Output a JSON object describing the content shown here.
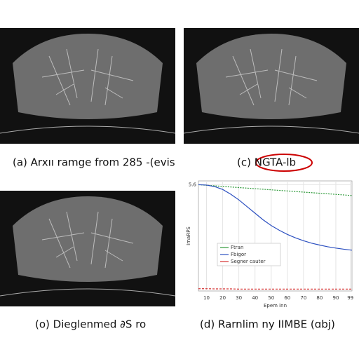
{
  "captions": {
    "a": "(a) Arxıı ramge from 285 -(evis",
    "c": "(c) NGTA-lb",
    "o": "(o) Dieglenmed ∂S ro",
    "d": "(d) Rarnlim ny IIMBE (ɑbj)"
  },
  "chart_data": {
    "type": "line",
    "x_label": "Epem inn",
    "y_label": "ImaRPS",
    "x": [
      5,
      10,
      15,
      20,
      25,
      30,
      35,
      40,
      45,
      50,
      55,
      60,
      65,
      70,
      75,
      80,
      85,
      90,
      95,
      100
    ],
    "xlim": [
      5,
      100
    ],
    "xticks": [
      10,
      20,
      30,
      40,
      50,
      60,
      70,
      80,
      90,
      {
        "value": 99,
        "label": "99"
      }
    ],
    "ylim": [
      0,
      5.8
    ],
    "yticks": [
      {
        "value": 5.6,
        "label": "5.6"
      }
    ],
    "grid": true,
    "series": [
      {
        "name": "Ftran",
        "color": "#2e9a3a",
        "values": [
          5.6,
          5.57,
          5.54,
          5.51,
          5.48,
          5.45,
          5.42,
          5.39,
          5.36,
          5.33,
          5.3,
          5.27,
          5.24,
          5.21,
          5.18,
          5.15,
          5.12,
          5.09,
          5.06,
          5.03
        ]
      },
      {
        "name": "Fbigor",
        "color": "#2b4fc0",
        "values": [
          5.6,
          5.58,
          5.5,
          5.35,
          5.1,
          4.8,
          4.45,
          4.1,
          3.75,
          3.45,
          3.2,
          2.98,
          2.8,
          2.65,
          2.52,
          2.42,
          2.33,
          2.26,
          2.2,
          2.15
        ]
      },
      {
        "name": "Segner cauter",
        "color": "#d43030",
        "values": [
          0.12,
          0.12,
          0.11,
          0.11,
          0.11,
          0.1,
          0.1,
          0.1,
          0.1,
          0.1,
          0.1,
          0.1,
          0.1,
          0.1,
          0.1,
          0.1,
          0.1,
          0.1,
          0.1,
          0.1
        ]
      }
    ]
  }
}
